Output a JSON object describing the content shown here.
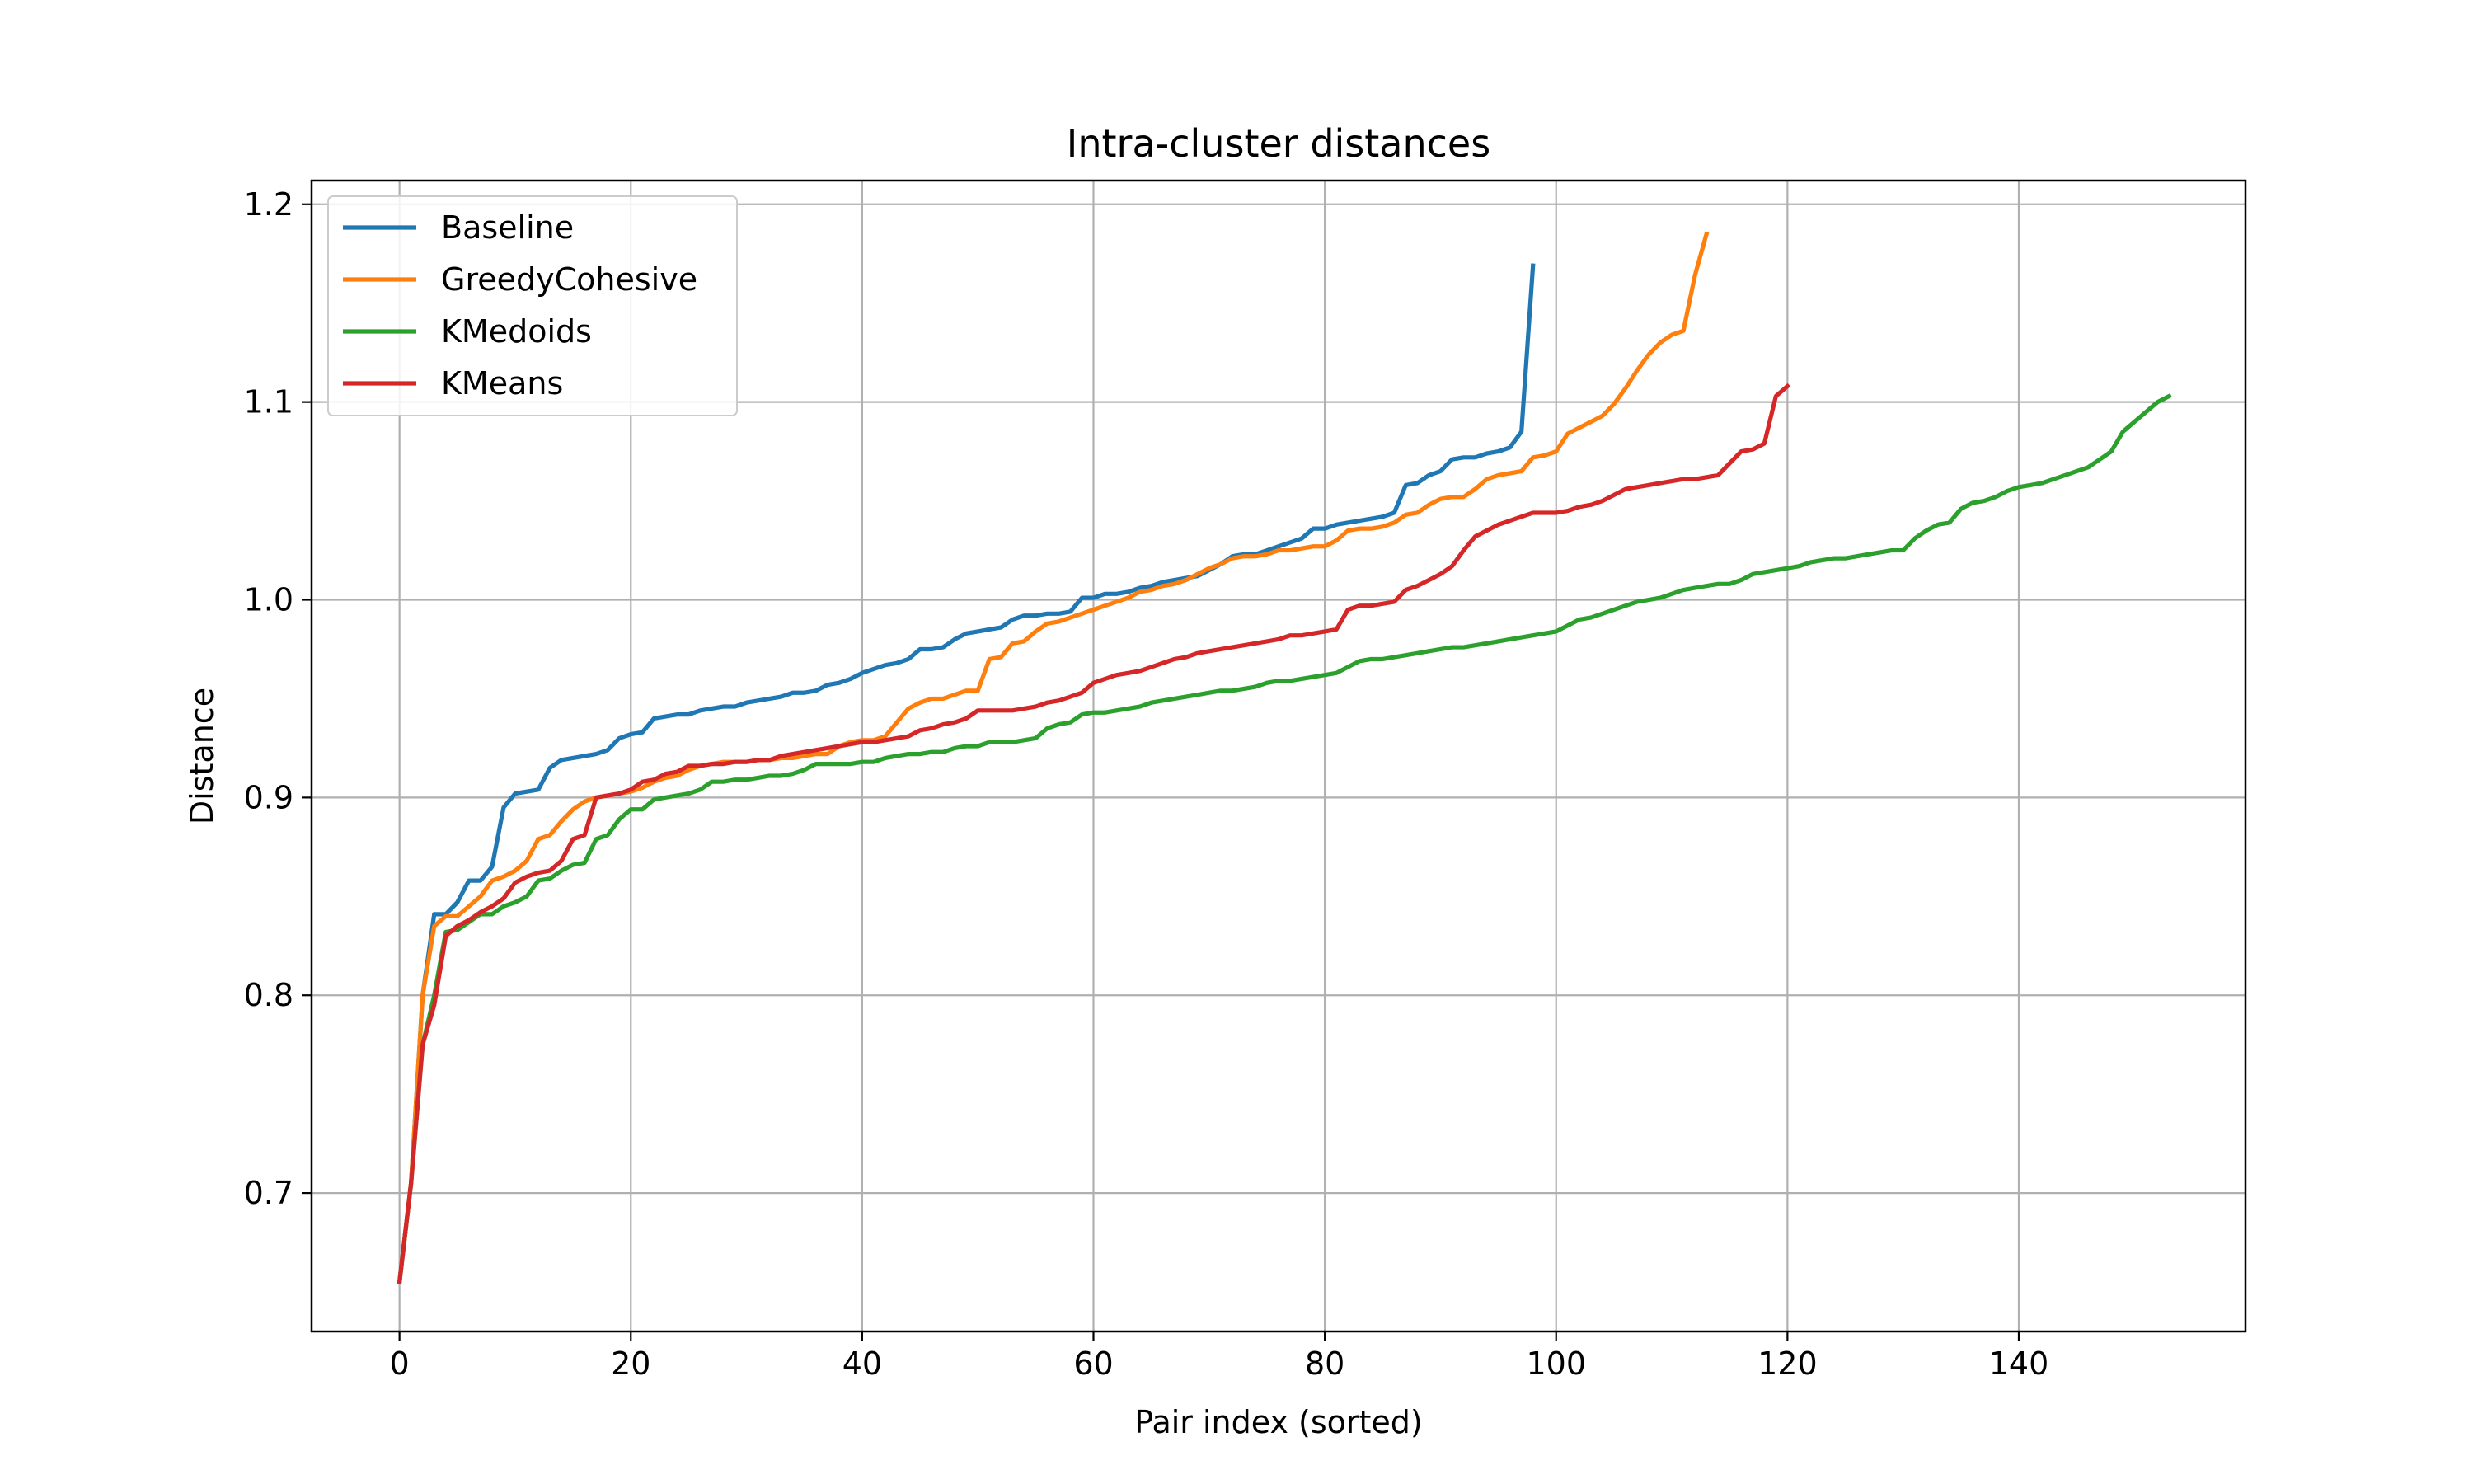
{
  "chart_data": {
    "type": "line",
    "title": "Intra-cluster distances",
    "xlabel": "Pair index (sorted)",
    "ylabel": "Distance",
    "xlim": [
      -7.6,
      159.6
    ],
    "ylim": [
      0.63,
      1.212
    ],
    "xticks": [
      0,
      20,
      40,
      60,
      80,
      100,
      120,
      140
    ],
    "xtick_labels": [
      "0",
      "20",
      "40",
      "60",
      "80",
      "100",
      "120",
      "140"
    ],
    "yticks": [
      0.7,
      0.8,
      0.9,
      1.0,
      1.1,
      1.2
    ],
    "ytick_labels": [
      "0.7",
      "0.8",
      "0.9",
      "1.0",
      "1.1",
      "1.2"
    ],
    "grid": true,
    "legend_position": "upper-left",
    "series": [
      {
        "name": "Baseline",
        "color": "#1f77b4",
        "x_start": 0,
        "values": [
          0.655,
          0.705,
          0.8,
          0.841,
          0.841,
          0.847,
          0.858,
          0.858,
          0.865,
          0.895,
          0.902,
          0.903,
          0.904,
          0.915,
          0.919,
          0.92,
          0.921,
          0.922,
          0.924,
          0.93,
          0.932,
          0.933,
          0.94,
          0.941,
          0.942,
          0.942,
          0.944,
          0.945,
          0.946,
          0.946,
          0.948,
          0.949,
          0.95,
          0.951,
          0.953,
          0.953,
          0.954,
          0.957,
          0.958,
          0.96,
          0.963,
          0.965,
          0.967,
          0.968,
          0.97,
          0.975,
          0.975,
          0.976,
          0.98,
          0.983,
          0.984,
          0.985,
          0.986,
          0.99,
          0.992,
          0.992,
          0.993,
          0.993,
          0.994,
          1.001,
          1.001,
          1.003,
          1.003,
          1.004,
          1.006,
          1.007,
          1.009,
          1.01,
          1.011,
          1.012,
          1.015,
          1.018,
          1.022,
          1.023,
          1.023,
          1.025,
          1.027,
          1.029,
          1.031,
          1.036,
          1.036,
          1.038,
          1.039,
          1.04,
          1.041,
          1.042,
          1.044,
          1.058,
          1.059,
          1.063,
          1.065,
          1.071,
          1.072,
          1.072,
          1.074,
          1.075,
          1.077,
          1.085,
          1.169
        ]
      },
      {
        "name": "GreedyCohesive",
        "color": "#ff7f0e",
        "x_start": 0,
        "values": [
          0.655,
          0.705,
          0.8,
          0.835,
          0.84,
          0.84,
          0.845,
          0.85,
          0.858,
          0.86,
          0.863,
          0.868,
          0.879,
          0.881,
          0.888,
          0.894,
          0.898,
          0.9,
          0.901,
          0.902,
          0.903,
          0.905,
          0.908,
          0.91,
          0.911,
          0.914,
          0.916,
          0.917,
          0.918,
          0.918,
          0.918,
          0.919,
          0.919,
          0.92,
          0.92,
          0.921,
          0.922,
          0.922,
          0.926,
          0.928,
          0.929,
          0.929,
          0.931,
          0.938,
          0.945,
          0.948,
          0.95,
          0.95,
          0.952,
          0.954,
          0.954,
          0.97,
          0.971,
          0.978,
          0.979,
          0.984,
          0.988,
          0.989,
          0.991,
          0.993,
          0.995,
          0.997,
          0.999,
          1.001,
          1.004,
          1.005,
          1.007,
          1.008,
          1.01,
          1.013,
          1.016,
          1.018,
          1.021,
          1.022,
          1.022,
          1.023,
          1.025,
          1.025,
          1.026,
          1.027,
          1.027,
          1.03,
          1.035,
          1.036,
          1.036,
          1.037,
          1.039,
          1.043,
          1.044,
          1.048,
          1.051,
          1.052,
          1.052,
          1.056,
          1.061,
          1.063,
          1.064,
          1.065,
          1.072,
          1.073,
          1.075,
          1.084,
          1.087,
          1.09,
          1.093,
          1.099,
          1.107,
          1.116,
          1.124,
          1.13,
          1.134,
          1.136,
          1.164,
          1.185
        ]
      },
      {
        "name": "KMedoids",
        "color": "#2ca02c",
        "x_start": 0,
        "values": [
          0.655,
          0.705,
          0.775,
          0.8,
          0.832,
          0.833,
          0.837,
          0.841,
          0.841,
          0.845,
          0.847,
          0.85,
          0.858,
          0.859,
          0.863,
          0.866,
          0.867,
          0.879,
          0.881,
          0.889,
          0.894,
          0.894,
          0.899,
          0.9,
          0.901,
          0.902,
          0.904,
          0.908,
          0.908,
          0.909,
          0.909,
          0.91,
          0.911,
          0.911,
          0.912,
          0.914,
          0.917,
          0.917,
          0.917,
          0.917,
          0.918,
          0.918,
          0.92,
          0.921,
          0.922,
          0.922,
          0.923,
          0.923,
          0.925,
          0.926,
          0.926,
          0.928,
          0.928,
          0.928,
          0.929,
          0.93,
          0.935,
          0.937,
          0.938,
          0.942,
          0.943,
          0.943,
          0.944,
          0.945,
          0.946,
          0.948,
          0.949,
          0.95,
          0.951,
          0.952,
          0.953,
          0.954,
          0.954,
          0.955,
          0.956,
          0.958,
          0.959,
          0.959,
          0.96,
          0.961,
          0.962,
          0.963,
          0.966,
          0.969,
          0.97,
          0.97,
          0.971,
          0.972,
          0.973,
          0.974,
          0.975,
          0.976,
          0.976,
          0.977,
          0.978,
          0.979,
          0.98,
          0.981,
          0.982,
          0.983,
          0.984,
          0.987,
          0.99,
          0.991,
          0.993,
          0.995,
          0.997,
          0.999,
          1.0,
          1.001,
          1.003,
          1.005,
          1.006,
          1.007,
          1.008,
          1.008,
          1.01,
          1.013,
          1.014,
          1.015,
          1.016,
          1.017,
          1.019,
          1.02,
          1.021,
          1.021,
          1.022,
          1.023,
          1.024,
          1.025,
          1.025,
          1.031,
          1.035,
          1.038,
          1.039,
          1.046,
          1.049,
          1.05,
          1.052,
          1.055,
          1.057,
          1.058,
          1.059,
          1.061,
          1.063,
          1.065,
          1.067,
          1.071,
          1.075,
          1.085,
          1.09,
          1.095,
          1.1,
          1.103
        ]
      },
      {
        "name": "KMeans",
        "color": "#d62728",
        "x_start": 0,
        "values": [
          0.655,
          0.705,
          0.775,
          0.795,
          0.83,
          0.835,
          0.838,
          0.842,
          0.845,
          0.849,
          0.857,
          0.86,
          0.862,
          0.863,
          0.868,
          0.879,
          0.881,
          0.9,
          0.901,
          0.902,
          0.904,
          0.908,
          0.909,
          0.912,
          0.913,
          0.916,
          0.916,
          0.917,
          0.917,
          0.918,
          0.918,
          0.919,
          0.919,
          0.921,
          0.922,
          0.923,
          0.924,
          0.925,
          0.926,
          0.927,
          0.928,
          0.928,
          0.929,
          0.93,
          0.931,
          0.934,
          0.935,
          0.937,
          0.938,
          0.94,
          0.944,
          0.944,
          0.944,
          0.944,
          0.945,
          0.946,
          0.948,
          0.949,
          0.951,
          0.953,
          0.958,
          0.96,
          0.962,
          0.963,
          0.964,
          0.966,
          0.968,
          0.97,
          0.971,
          0.973,
          0.974,
          0.975,
          0.976,
          0.977,
          0.978,
          0.979,
          0.98,
          0.982,
          0.982,
          0.983,
          0.984,
          0.985,
          0.995,
          0.997,
          0.997,
          0.998,
          0.999,
          1.005,
          1.007,
          1.01,
          1.013,
          1.017,
          1.025,
          1.032,
          1.035,
          1.038,
          1.04,
          1.042,
          1.044,
          1.044,
          1.044,
          1.045,
          1.047,
          1.048,
          1.05,
          1.053,
          1.056,
          1.057,
          1.058,
          1.059,
          1.06,
          1.061,
          1.061,
          1.062,
          1.063,
          1.069,
          1.075,
          1.076,
          1.079,
          1.103,
          1.108
        ]
      }
    ]
  }
}
